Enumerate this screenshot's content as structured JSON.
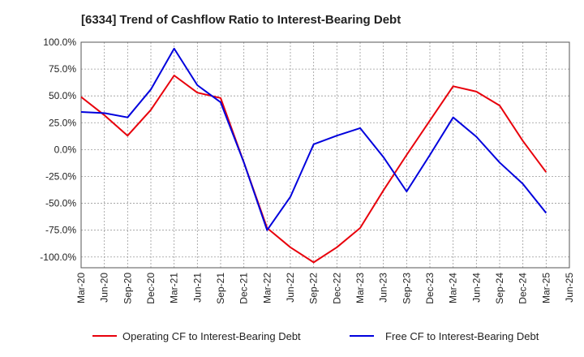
{
  "chart_data": {
    "type": "line",
    "title": "[6334]  Trend of Cashflow Ratio to Interest-Bearing Debt",
    "xlabel": "",
    "ylabel": "",
    "categories": [
      "Mar-20",
      "Jun-20",
      "Sep-20",
      "Dec-20",
      "Mar-21",
      "Jun-21",
      "Sep-21",
      "Dec-21",
      "Mar-22",
      "Jun-22",
      "Sep-22",
      "Dec-22",
      "Mar-23",
      "Jun-23",
      "Sep-23",
      "Dec-23",
      "Mar-24",
      "Jun-24",
      "Sep-24",
      "Dec-24",
      "Mar-25",
      "Jun-25"
    ],
    "ylim": [
      -110,
      100
    ],
    "yticks": [
      100,
      75,
      50,
      25,
      0,
      -25,
      -50,
      -75,
      -100
    ],
    "ytick_labels": [
      "100.0%",
      "75.0%",
      "50.0%",
      "25.0%",
      "0.0%",
      "-25.0%",
      "-50.0%",
      "-75.0%",
      "-100.0%"
    ],
    "grid": true,
    "legend_position": "bottom",
    "series": [
      {
        "name": "Operating CF to Interest-Bearing Debt",
        "color": "#e8000b",
        "values": [
          49,
          32,
          13,
          37,
          69,
          53,
          48,
          -12,
          -73,
          -91,
          -105,
          -91,
          -73,
          -38,
          -5,
          27,
          59,
          54,
          41,
          8,
          -21,
          null
        ]
      },
      {
        "name": "Free CF to Interest-Bearing Debt",
        "color": "#0000dd",
        "values": [
          35,
          34,
          30,
          56,
          94,
          60,
          44,
          -12,
          -75,
          -44,
          5,
          13,
          20,
          -7,
          -39,
          -5,
          30,
          12,
          -12,
          -32,
          -59,
          null
        ]
      }
    ]
  }
}
